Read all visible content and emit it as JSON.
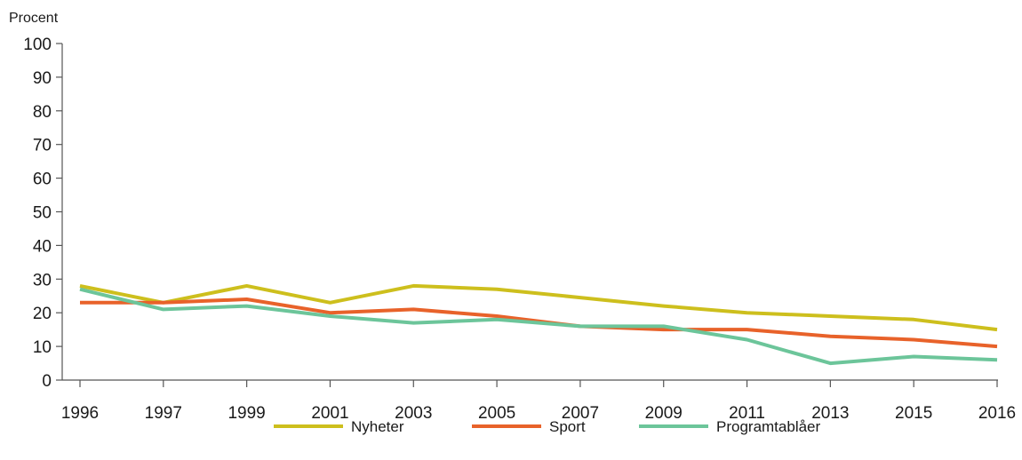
{
  "chart_data": {
    "type": "line",
    "ylabel": "Procent",
    "xlabel": "",
    "title": "",
    "ylim": [
      0,
      100
    ],
    "yticks": [
      "0",
      "10",
      "20",
      "30",
      "40",
      "50",
      "60",
      "70",
      "80",
      "90",
      "100"
    ],
    "categories": [
      "1996",
      "1997",
      "1999",
      "2001",
      "2003",
      "2005",
      "2007",
      "2009",
      "2011",
      "2013",
      "2015",
      "2016"
    ],
    "series": [
      {
        "name": "Nyheter",
        "color": "#cdbf1d",
        "values": [
          28,
          23,
          28,
          23,
          28,
          27,
          24.5,
          22,
          20,
          19,
          18,
          15
        ]
      },
      {
        "name": "Sport",
        "color": "#e8622a",
        "values": [
          23,
          23,
          24,
          20,
          21,
          19,
          16,
          15,
          15,
          13,
          12,
          10
        ]
      },
      {
        "name": "Programtablåer",
        "color": "#6cc59a",
        "values": [
          27,
          21,
          22,
          19,
          17,
          18,
          16,
          16,
          12,
          5,
          7,
          6
        ]
      }
    ],
    "legend_position": "bottom",
    "grid": false
  }
}
